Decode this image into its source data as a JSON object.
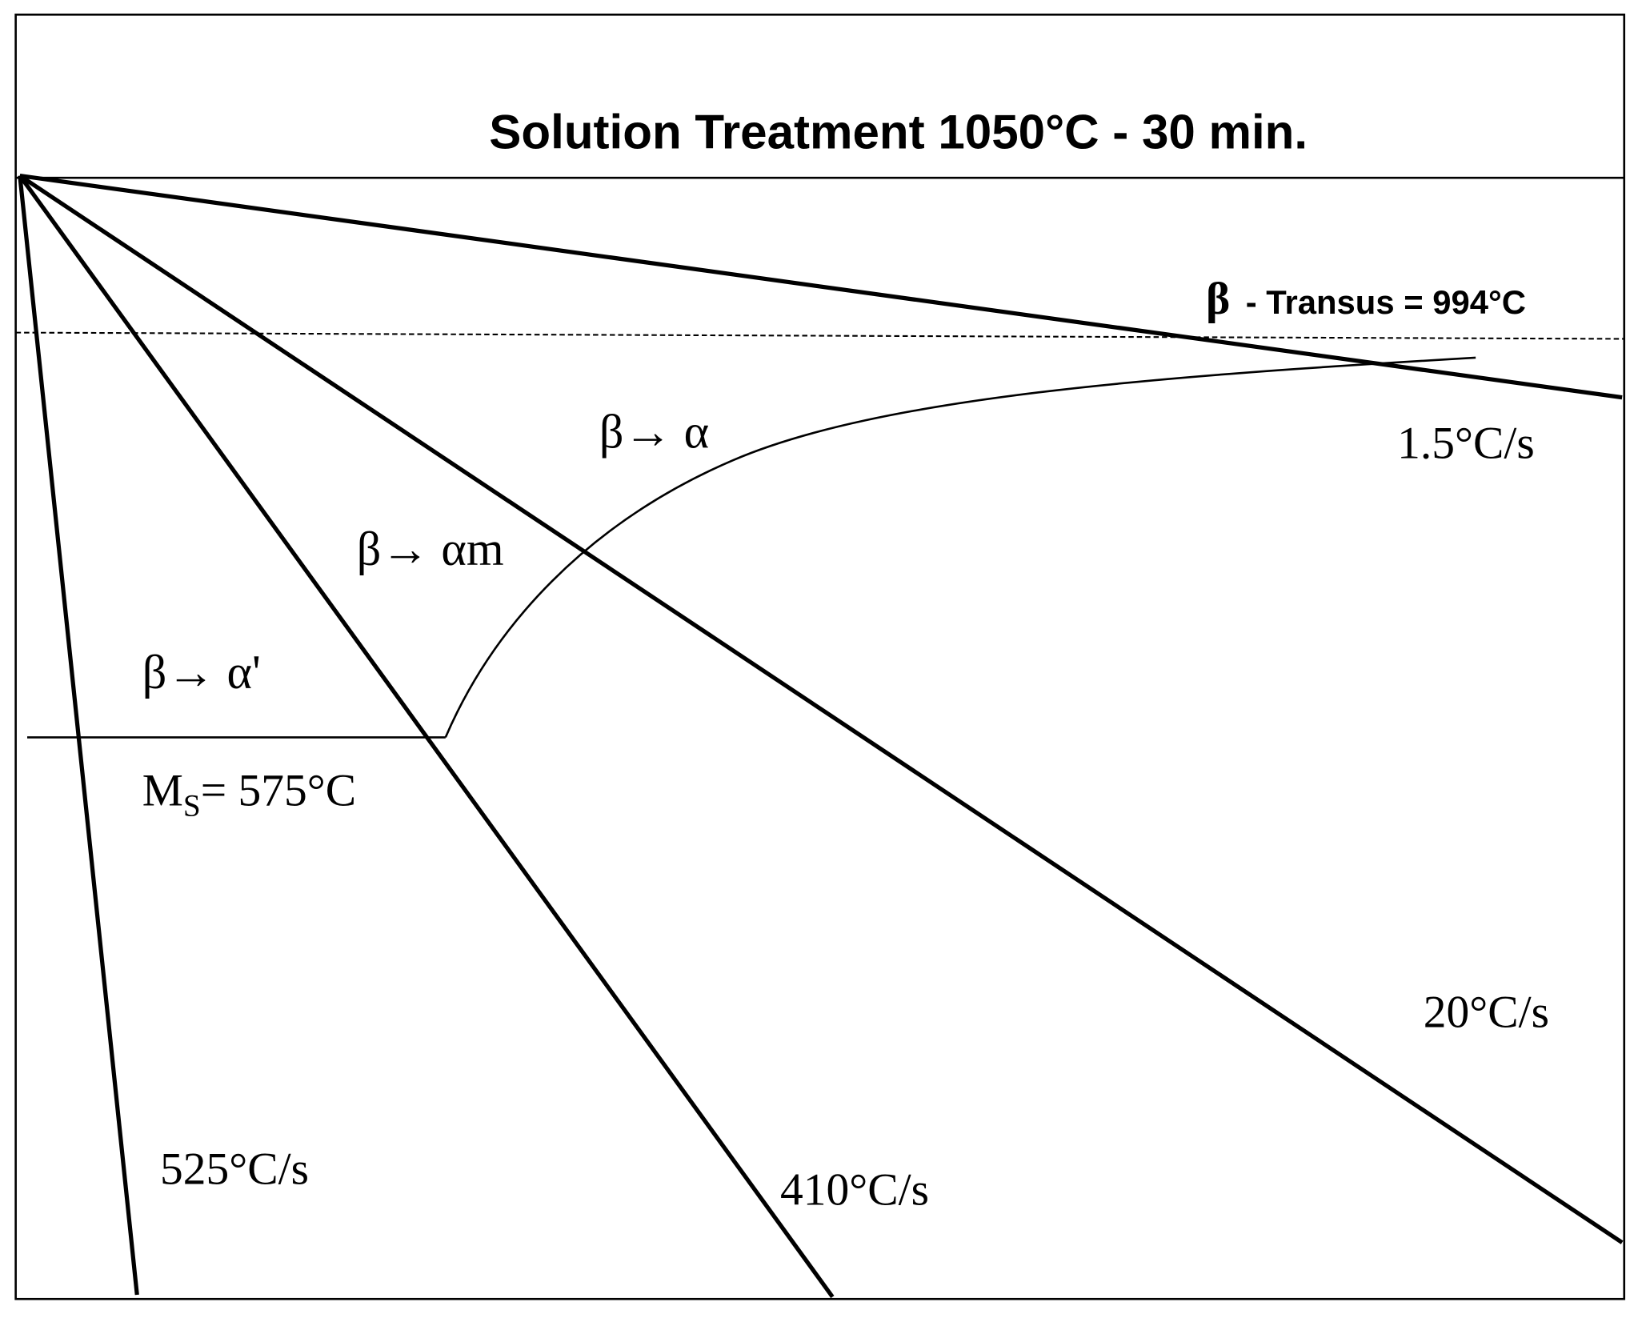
{
  "title": "Solution Treatment 1050°C - 30 min.",
  "transus_label": {
    "symbol": "β",
    "text": "- Transus = 994°C"
  },
  "cooling_rates": [
    "1.5°C/s",
    "20°C/s",
    "410°C/s",
    "525°C/s"
  ],
  "regions": [
    "β→ α",
    "β→ αm",
    "β→ α'"
  ],
  "ms_label": {
    "main": "M",
    "subscript": "S",
    "rest": "= 575°C"
  }
}
